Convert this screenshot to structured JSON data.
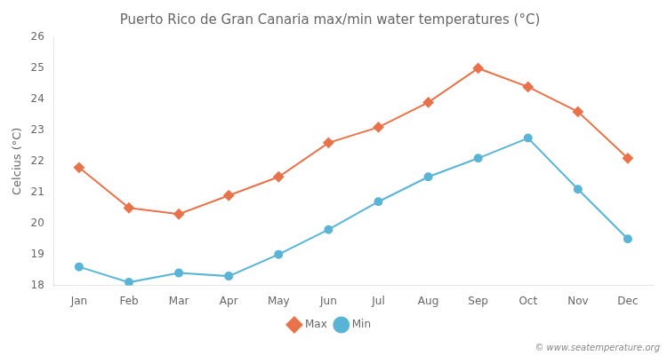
{
  "chart_data": {
    "type": "line",
    "title": "Puerto Rico de Gran Canaria max/min water temperatures (°C)",
    "y_label": "Celcius (°C)",
    "categories": [
      "Jan",
      "Feb",
      "Mar",
      "Apr",
      "May",
      "Jun",
      "Jul",
      "Aug",
      "Sep",
      "Oct",
      "Nov",
      "Dec"
    ],
    "series": [
      {
        "name": "Max",
        "color": "#e8734a",
        "marker": "diamond",
        "values": [
          21.8,
          20.5,
          20.3,
          20.9,
          21.5,
          22.6,
          23.1,
          23.9,
          25.0,
          24.4,
          23.6,
          22.1
        ]
      },
      {
        "name": "Min",
        "color": "#5ab4d6",
        "marker": "circle",
        "values": [
          18.6,
          18.1,
          18.4,
          18.3,
          19.0,
          19.8,
          20.7,
          21.5,
          22.1,
          22.75,
          21.1,
          19.5
        ]
      }
    ],
    "ylim": [
      18,
      26
    ],
    "yticks": [
      18,
      19,
      20,
      21,
      22,
      23,
      24,
      25,
      26
    ],
    "grid": false,
    "legend": "bottom",
    "annotations": [
      "© www.seatemperature.org"
    ]
  }
}
